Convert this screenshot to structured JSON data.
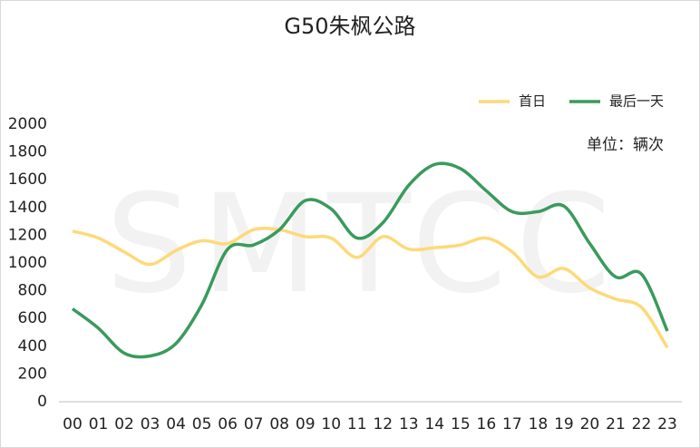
{
  "chart_data": {
    "type": "line",
    "title": "G50朱枫公路",
    "unit": "单位：辆次",
    "watermark": "SMTCC",
    "categories": [
      "00",
      "01",
      "02",
      "03",
      "04",
      "05",
      "06",
      "07",
      "08",
      "09",
      "10",
      "11",
      "12",
      "13",
      "14",
      "15",
      "16",
      "17",
      "18",
      "19",
      "20",
      "21",
      "22",
      "23"
    ],
    "series": [
      {
        "name": "首日",
        "color": "#fdd97a",
        "values": [
          1230,
          1180,
          1080,
          990,
          1090,
          1160,
          1140,
          1240,
          1240,
          1190,
          1180,
          1040,
          1190,
          1100,
          1110,
          1130,
          1180,
          1080,
          900,
          960,
          820,
          740,
          680,
          390
        ]
      },
      {
        "name": "最后一天",
        "color": "#3a9a5c",
        "values": [
          670,
          530,
          350,
          330,
          420,
          700,
          1100,
          1130,
          1240,
          1450,
          1390,
          1180,
          1290,
          1560,
          1710,
          1680,
          1520,
          1370,
          1370,
          1410,
          1140,
          900,
          920,
          510
        ]
      }
    ],
    "ylim": [
      0,
      2000
    ],
    "yticks": [
      0,
      200,
      400,
      600,
      800,
      1000,
      1200,
      1400,
      1600,
      1800,
      2000
    ],
    "legend": "top-right"
  }
}
